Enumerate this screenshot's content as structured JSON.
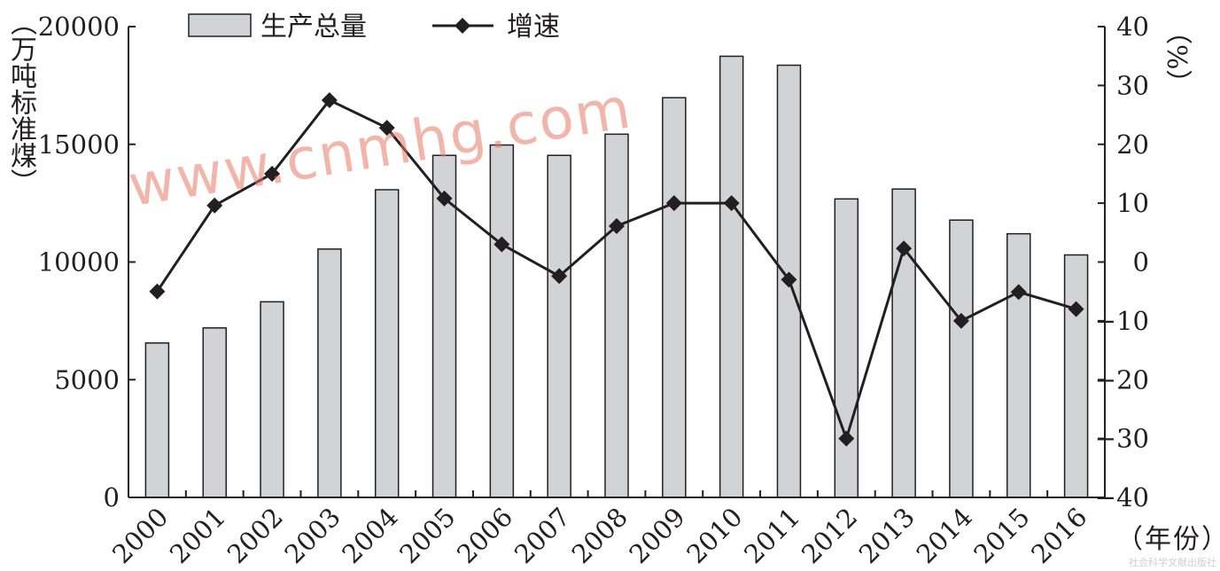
{
  "chart_data": {
    "type": "bar+line",
    "categories": [
      "2000",
      "2001",
      "2002",
      "2003",
      "2004",
      "2005",
      "2006",
      "2007",
      "2008",
      "2009",
      "2010",
      "2011",
      "2012",
      "2013",
      "2014",
      "2015",
      "2016"
    ],
    "series": [
      {
        "name": "生产总量",
        "type": "bar",
        "axis": "left",
        "values": [
          6560,
          7200,
          8310,
          10550,
          13070,
          14530,
          14970,
          14530,
          15430,
          16980,
          18740,
          18360,
          12680,
          13100,
          11780,
          11200,
          10300
        ]
      },
      {
        "name": "增速",
        "type": "line",
        "axis": "right",
        "values": [
          -5,
          9.6,
          15,
          27.5,
          22.8,
          10.8,
          3,
          -2.4,
          6.1,
          10,
          10,
          -3,
          -30,
          2.3,
          -10,
          -5.1,
          -8
        ]
      }
    ],
    "y_left": {
      "label": "（万吨标准煤）",
      "ylim": [
        0,
        20000
      ],
      "ticks": [
        "0",
        "5000",
        "10000",
        "15000",
        "20000"
      ]
    },
    "y_right": {
      "label": "（%）",
      "ylim": [
        -40,
        40
      ],
      "ticks": [
        "-40",
        "-30",
        "-20",
        "-10",
        "0",
        "10",
        "20",
        "30",
        "40"
      ]
    },
    "xlabel": "（年份）",
    "legend": {
      "position": "top",
      "items": [
        "生产总量",
        "增速"
      ]
    },
    "grid": false,
    "colors": {
      "bar_fill": "#d1d3d4",
      "bar_stroke": "#231f20",
      "line": "#231f20",
      "axis": "#231f20"
    }
  },
  "watermark": "www.cnmhg.com",
  "footer": "社会科学文献出版社"
}
